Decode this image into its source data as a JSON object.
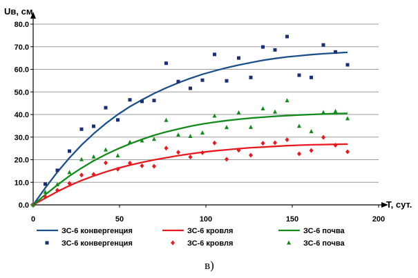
{
  "chart_data": {
    "type": "line",
    "ylabel": "Uв, см",
    "xlabel": "Т, сут.",
    "caption": "в)",
    "xlim": [
      0,
      200
    ],
    "ylim": [
      0,
      80
    ],
    "x_ticks": [
      "0",
      "50",
      "100",
      "150",
      "200"
    ],
    "y_ticks": [
      "0.0",
      "10.0",
      "20.0",
      "30.0",
      "40.0",
      "50.0",
      "60.0",
      "70.0",
      "80.0"
    ],
    "x_tick_values": [
      0,
      50,
      100,
      150,
      200
    ],
    "y_tick_values": [
      0,
      10,
      20,
      30,
      40,
      50,
      60,
      70,
      80
    ],
    "grid": "horizontal",
    "legend_position": "bottom",
    "series": [
      {
        "name": "ЗС-6 конвергенция",
        "kind": "line",
        "color": "#1a4f8a",
        "points": [
          [
            0,
            0
          ],
          [
            7,
            7.5
          ],
          [
            14,
            14.5
          ],
          [
            21,
            20.8
          ],
          [
            28,
            26.5
          ],
          [
            35,
            31.5
          ],
          [
            42,
            36
          ],
          [
            49,
            40
          ],
          [
            56,
            43.5
          ],
          [
            63,
            46.5
          ],
          [
            70,
            49.3
          ],
          [
            77,
            51.8
          ],
          [
            84,
            54
          ],
          [
            91,
            56
          ],
          [
            98,
            57.8
          ],
          [
            105,
            59.3
          ],
          [
            112,
            60.7
          ],
          [
            119,
            61.9
          ],
          [
            126,
            63
          ],
          [
            133,
            64
          ],
          [
            140,
            64.8
          ],
          [
            147,
            65.5
          ],
          [
            154,
            66
          ],
          [
            161,
            66.5
          ],
          [
            168,
            66.9
          ],
          [
            175,
            67.2
          ],
          [
            182,
            67.5
          ]
        ]
      },
      {
        "name": "ЗС-6 кровля",
        "kind": "line",
        "color": "#e8191e",
        "points": [
          [
            0,
            0
          ],
          [
            7,
            3
          ],
          [
            14,
            5.9
          ],
          [
            21,
            8.5
          ],
          [
            28,
            10.8
          ],
          [
            35,
            12.8
          ],
          [
            42,
            14.6
          ],
          [
            49,
            16.2
          ],
          [
            56,
            17.6
          ],
          [
            63,
            18.8
          ],
          [
            70,
            19.9
          ],
          [
            77,
            20.9
          ],
          [
            84,
            21.8
          ],
          [
            91,
            22.6
          ],
          [
            98,
            23.3
          ],
          [
            105,
            23.9
          ],
          [
            112,
            24.4
          ],
          [
            119,
            24.9
          ],
          [
            126,
            25.3
          ],
          [
            133,
            25.6
          ],
          [
            140,
            25.9
          ],
          [
            147,
            26.2
          ],
          [
            154,
            26.4
          ],
          [
            161,
            26.6
          ],
          [
            168,
            26.7
          ],
          [
            175,
            26.8
          ],
          [
            182,
            26.9
          ]
        ]
      },
      {
        "name": "ЗС-6 почва",
        "kind": "line",
        "color": "#118a1a",
        "points": [
          [
            0,
            0
          ],
          [
            7,
            4.5
          ],
          [
            14,
            8.8
          ],
          [
            21,
            12.8
          ],
          [
            28,
            16.3
          ],
          [
            35,
            19.5
          ],
          [
            42,
            22.3
          ],
          [
            49,
            24.8
          ],
          [
            56,
            27
          ],
          [
            63,
            29
          ],
          [
            70,
            30.8
          ],
          [
            77,
            32.3
          ],
          [
            84,
            33.6
          ],
          [
            91,
            34.8
          ],
          [
            98,
            35.8
          ],
          [
            105,
            36.6
          ],
          [
            112,
            37.3
          ],
          [
            119,
            37.9
          ],
          [
            126,
            38.4
          ],
          [
            133,
            38.8
          ],
          [
            140,
            39.2
          ],
          [
            147,
            39.5
          ],
          [
            154,
            39.8
          ],
          [
            161,
            40
          ],
          [
            168,
            40.2
          ],
          [
            175,
            40.4
          ],
          [
            182,
            40.5
          ]
        ]
      },
      {
        "name": "ЗС-6 конвергенция",
        "kind": "scatter",
        "marker": "square",
        "color": "#1a2e7a",
        "points": [
          [
            0,
            0
          ],
          [
            7,
            9.2
          ],
          [
            14,
            15.3
          ],
          [
            21,
            23.8
          ],
          [
            28,
            33.5
          ],
          [
            35,
            34.8
          ],
          [
            42,
            43
          ],
          [
            49,
            37.6
          ],
          [
            56,
            46.5
          ],
          [
            63,
            45.8
          ],
          [
            70,
            46.2
          ],
          [
            77,
            62.7
          ],
          [
            84,
            54.6
          ],
          [
            91,
            51.6
          ],
          [
            98,
            55.2
          ],
          [
            105,
            66.6
          ],
          [
            112,
            54.9
          ],
          [
            119,
            65
          ],
          [
            126,
            56.4
          ],
          [
            133,
            69.9
          ],
          [
            140,
            68.6
          ],
          [
            147,
            74.5
          ],
          [
            154,
            57.4
          ],
          [
            161,
            56.4
          ],
          [
            168,
            70.8
          ],
          [
            175,
            67.7
          ],
          [
            182,
            62
          ]
        ]
      },
      {
        "name": "ЗС-6 кровля",
        "kind": "scatter",
        "marker": "diamond",
        "color": "#e8191e",
        "points": [
          [
            0,
            0
          ],
          [
            7,
            3.6
          ],
          [
            14,
            6.5
          ],
          [
            21,
            9.5
          ],
          [
            28,
            13.2
          ],
          [
            35,
            13.5
          ],
          [
            42,
            18.6
          ],
          [
            49,
            15.8
          ],
          [
            56,
            18.5
          ],
          [
            63,
            17.3
          ],
          [
            70,
            17.1
          ],
          [
            77,
            25.1
          ],
          [
            84,
            23.3
          ],
          [
            91,
            21.2
          ],
          [
            98,
            23.1
          ],
          [
            105,
            27.4
          ],
          [
            112,
            20.2
          ],
          [
            119,
            24.2
          ],
          [
            126,
            22
          ],
          [
            133,
            27.3
          ],
          [
            140,
            27.5
          ],
          [
            147,
            28.8
          ],
          [
            154,
            22.6
          ],
          [
            161,
            24.1
          ],
          [
            168,
            29.9
          ],
          [
            175,
            26.4
          ],
          [
            182,
            23.5
          ]
        ]
      },
      {
        "name": "ЗС-6 почва",
        "kind": "scatter",
        "marker": "triangle",
        "color": "#118a1a",
        "points": [
          [
            0,
            0
          ],
          [
            7,
            5.7
          ],
          [
            14,
            9
          ],
          [
            21,
            14.4
          ],
          [
            28,
            20.1
          ],
          [
            35,
            21.3
          ],
          [
            42,
            24.4
          ],
          [
            49,
            21.8
          ],
          [
            56,
            27.8
          ],
          [
            63,
            28.4
          ],
          [
            70,
            29.1
          ],
          [
            77,
            37.5
          ],
          [
            84,
            31
          ],
          [
            91,
            30.4
          ],
          [
            98,
            31.9
          ],
          [
            105,
            39.4
          ],
          [
            112,
            34.3
          ],
          [
            119,
            40.8
          ],
          [
            126,
            34.4
          ],
          [
            133,
            42.6
          ],
          [
            140,
            41.2
          ],
          [
            147,
            46.2
          ],
          [
            154,
            34.9
          ],
          [
            161,
            32.5
          ],
          [
            168,
            40.9
          ],
          [
            175,
            41.4
          ],
          [
            182,
            38.2
          ]
        ]
      }
    ]
  }
}
